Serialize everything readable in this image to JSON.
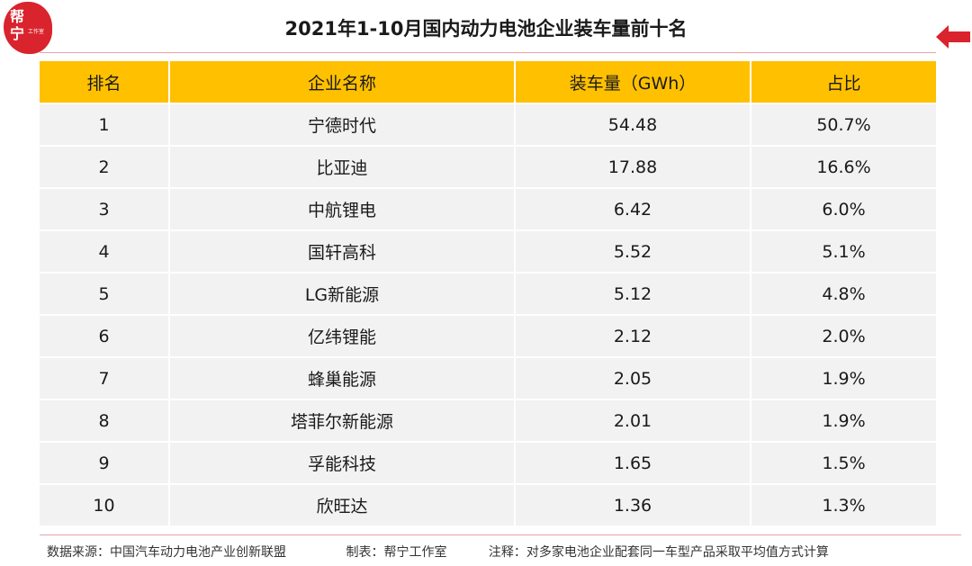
{
  "logo": {
    "line1": "帮",
    "line2": "宁",
    "small": "工作室",
    "color": "#d9232d"
  },
  "title": "2021年1-10月国内动力电池企业装车量前十名",
  "back_icon": "left-arrow-icon",
  "table": {
    "headers": [
      "排名",
      "企业名称",
      "装车量（GWh）",
      "占比"
    ],
    "rows": [
      [
        "1",
        "宁德时代",
        "54.48",
        "50.7%"
      ],
      [
        "2",
        "比亚迪",
        "17.88",
        "16.6%"
      ],
      [
        "3",
        "中航锂电",
        "6.42",
        "6.0%"
      ],
      [
        "4",
        "国轩高科",
        "5.52",
        "5.1%"
      ],
      [
        "5",
        "LG新能源",
        "5.12",
        "4.8%"
      ],
      [
        "6",
        "亿纬锂能",
        "2.12",
        "2.0%"
      ],
      [
        "7",
        "蜂巢能源",
        "2.05",
        "1.9%"
      ],
      [
        "8",
        "塔菲尔新能源",
        "2.01",
        "1.9%"
      ],
      [
        "9",
        "孚能科技",
        "1.65",
        "1.5%"
      ],
      [
        "10",
        "欣旺达",
        "1.36",
        "1.3%"
      ]
    ]
  },
  "footer": {
    "source": "数据来源：中国汽车动力电池产业创新联盟",
    "maker": "制表：帮宁工作室",
    "note": "注释：对多家电池企业配套同一车型产品采取平均值方式计算"
  },
  "colors": {
    "header_bg": "#ffc000",
    "row_bg": "#f2f2f2",
    "accent": "#d9232d"
  }
}
